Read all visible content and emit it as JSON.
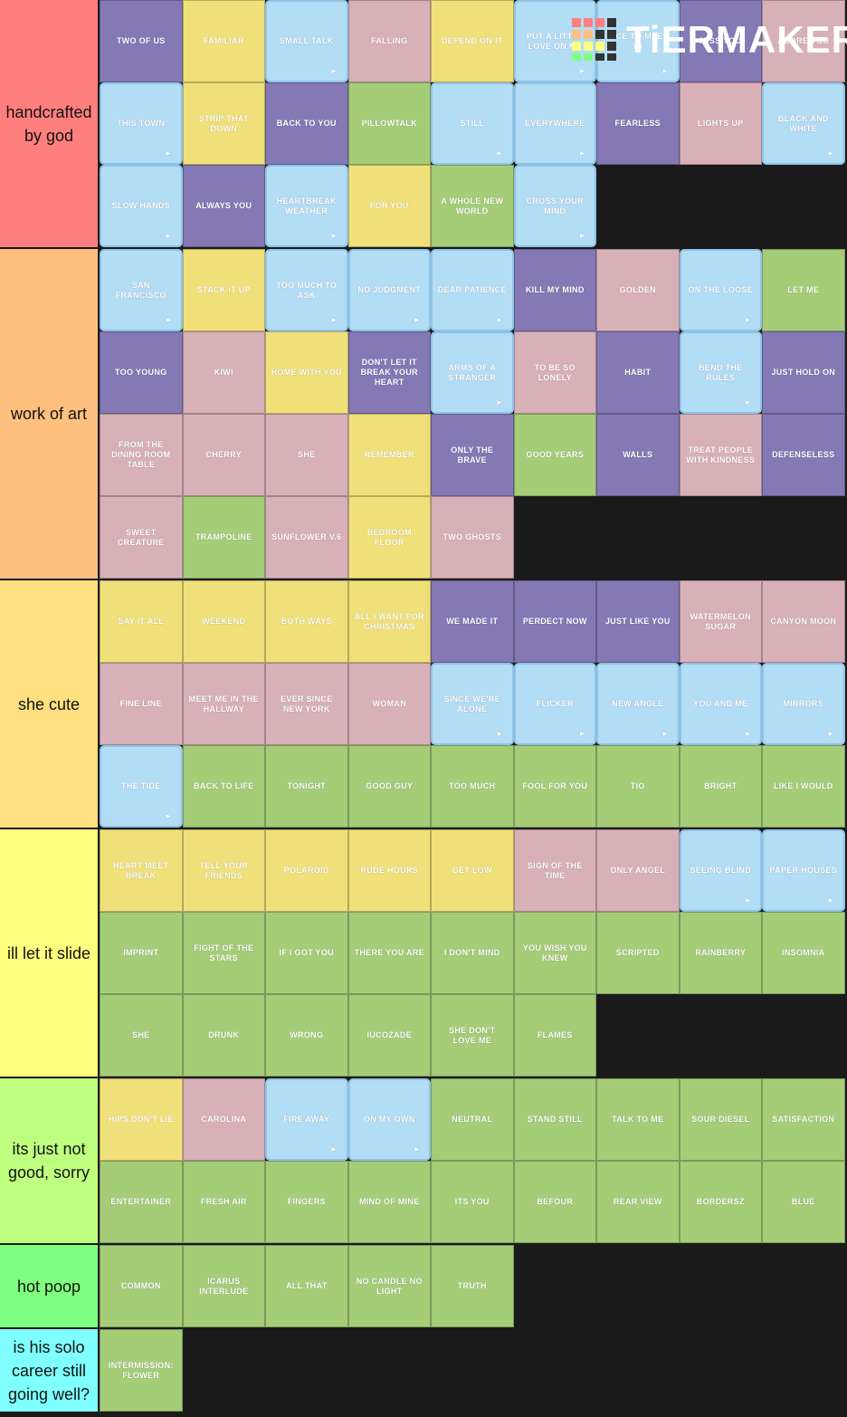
{
  "logo": "TiERMAKER",
  "tiers": [
    {
      "label": "handcrafted by god",
      "color": "#ff7f7f",
      "items": [
        {
          "title": "TWO OF US",
          "color": "#8479b5"
        },
        {
          "title": "FAMILIAR",
          "color": "#f0e07a"
        },
        {
          "title": "SMALL TALK",
          "color": "#b3dcf5"
        },
        {
          "title": "FALLING",
          "color": "#d8b0b8"
        },
        {
          "title": "DEPEND ON IT",
          "color": "#f0e07a"
        },
        {
          "title": "PUT A LITTLE LOVE ON ME",
          "color": "#b3dcf5"
        },
        {
          "title": "NICE TO MEET YA",
          "color": "#b3dcf5"
        },
        {
          "title": "MISS YOU",
          "color": "#8479b5"
        },
        {
          "title": "ADORE YOU",
          "color": "#d8b0b8"
        },
        {
          "title": "THIS TOWN",
          "color": "#b3dcf5"
        },
        {
          "title": "STRIP THAT DOWN",
          "color": "#f0e07a"
        },
        {
          "title": "BACK TO YOU",
          "color": "#8479b5"
        },
        {
          "title": "PILLOWTALK",
          "color": "#a5cd78"
        },
        {
          "title": "STILL",
          "color": "#b3dcf5"
        },
        {
          "title": "EVERYWHERE",
          "color": "#b3dcf5"
        },
        {
          "title": "FEARLESS",
          "color": "#8479b5"
        },
        {
          "title": "LIGHTS UP",
          "color": "#d8b0b8"
        },
        {
          "title": "BLACK AND WHITE",
          "color": "#b3dcf5"
        },
        {
          "title": "SLOW HANDS",
          "color": "#b3dcf5"
        },
        {
          "title": "ALWAYS YOU",
          "color": "#8479b5"
        },
        {
          "title": "HEARTBREAK WEATHER",
          "color": "#b3dcf5"
        },
        {
          "title": "FOR YOU",
          "color": "#f0e07a"
        },
        {
          "title": "A WHOLE NEW WORLD",
          "color": "#a5cd78"
        },
        {
          "title": "CROSS YOUR MIND",
          "color": "#b3dcf5"
        }
      ]
    },
    {
      "label": "work of art",
      "color": "#ffbf7f",
      "items": [
        {
          "title": "SAN FRANCISCO",
          "color": "#b3dcf5"
        },
        {
          "title": "STACK IT UP",
          "color": "#f0e07a"
        },
        {
          "title": "TOO MUCH TO ASK",
          "color": "#b3dcf5"
        },
        {
          "title": "NO JUDGMENT",
          "color": "#b3dcf5"
        },
        {
          "title": "DEAR PATIENCE",
          "color": "#b3dcf5"
        },
        {
          "title": "KILL MY MIND",
          "color": "#8479b5"
        },
        {
          "title": "GOLDEN",
          "color": "#d8b0b8"
        },
        {
          "title": "ON THE LOOSE",
          "color": "#b3dcf5"
        },
        {
          "title": "LET ME",
          "color": "#a5cd78"
        },
        {
          "title": "TOO YOUNG",
          "color": "#8479b5"
        },
        {
          "title": "KIWI",
          "color": "#d8b0b8"
        },
        {
          "title": "HOME WITH YOU",
          "color": "#f0e07a"
        },
        {
          "title": "DON'T LET IT BREAK YOUR HEART",
          "color": "#8479b5"
        },
        {
          "title": "ARMS OF A STRANGER",
          "color": "#b3dcf5"
        },
        {
          "title": "TO BE SO LONELY",
          "color": "#d8b0b8"
        },
        {
          "title": "HABIT",
          "color": "#8479b5"
        },
        {
          "title": "BEND THE RULES",
          "color": "#b3dcf5"
        },
        {
          "title": "JUST HOLD ON",
          "color": "#8479b5"
        },
        {
          "title": "FROM THE DINING ROOM TABLE",
          "color": "#d8b0b8"
        },
        {
          "title": "CHERRY",
          "color": "#d8b0b8"
        },
        {
          "title": "SHE",
          "color": "#d8b0b8"
        },
        {
          "title": "REMEMBER",
          "color": "#f0e07a"
        },
        {
          "title": "ONLY THE BRAVE",
          "color": "#8479b5"
        },
        {
          "title": "GOOD YEARS",
          "color": "#a5cd78"
        },
        {
          "title": "WALLS",
          "color": "#8479b5"
        },
        {
          "title": "TREAT PEOPLE WITH KINDNESS",
          "color": "#d8b0b8"
        },
        {
          "title": "DEFENSELESS",
          "color": "#8479b5"
        },
        {
          "title": "SWEET CREATURE",
          "color": "#d8b0b8"
        },
        {
          "title": "TRAMPOLINE",
          "color": "#a5cd78"
        },
        {
          "title": "SUNFLOWER V.6",
          "color": "#d8b0b8"
        },
        {
          "title": "BEDROOM FLOOR",
          "color": "#f0e07a"
        },
        {
          "title": "TWO GHOSTS",
          "color": "#d8b0b8"
        }
      ]
    },
    {
      "label": "she cute",
      "color": "#ffdf7f",
      "items": [
        {
          "title": "SAY IT ALL",
          "color": "#f0e07a"
        },
        {
          "title": "WEEKEND",
          "color": "#f0e07a"
        },
        {
          "title": "BOTH WAYS",
          "color": "#f0e07a"
        },
        {
          "title": "ALL I WANT FOR CHRISTMAS",
          "color": "#f0e07a"
        },
        {
          "title": "WE MADE IT",
          "color": "#8479b5"
        },
        {
          "title": "PERDECT NOW",
          "color": "#8479b5"
        },
        {
          "title": "JUST LIKE YOU",
          "color": "#8479b5"
        },
        {
          "title": "WATERMELON SUGAR",
          "color": "#d8b0b8"
        },
        {
          "title": "CANYON MOON",
          "color": "#d8b0b8"
        },
        {
          "title": "FINE LINE",
          "color": "#d8b0b8"
        },
        {
          "title": "MEET ME IN THE HALLWAY",
          "color": "#d8b0b8"
        },
        {
          "title": "EVER SINCE NEW YORK",
          "color": "#d8b0b8"
        },
        {
          "title": "WOMAN",
          "color": "#d8b0b8"
        },
        {
          "title": "SINCE WE'RE ALONE",
          "color": "#b3dcf5"
        },
        {
          "title": "FLICKER",
          "color": "#b3dcf5"
        },
        {
          "title": "NEW ANGLE",
          "color": "#b3dcf5"
        },
        {
          "title": "YOU AND ME",
          "color": "#b3dcf5"
        },
        {
          "title": "MIRRORS",
          "color": "#b3dcf5"
        },
        {
          "title": "THE TIDE",
          "color": "#b3dcf5"
        },
        {
          "title": "BACK TO LIFE",
          "color": "#a5cd78"
        },
        {
          "title": "TONIGHT",
          "color": "#a5cd78"
        },
        {
          "title": "GOOD GUY",
          "color": "#a5cd78"
        },
        {
          "title": "TOO MUCH",
          "color": "#a5cd78"
        },
        {
          "title": "FOOL FOR YOU",
          "color": "#a5cd78"
        },
        {
          "title": "TIO",
          "color": "#a5cd78"
        },
        {
          "title": "BRIGHT",
          "color": "#a5cd78"
        },
        {
          "title": "LIKE I WOULD",
          "color": "#a5cd78"
        }
      ]
    },
    {
      "label": "ill let it slide",
      "color": "#ffff7f",
      "items": [
        {
          "title": "HEART MEET BREAK",
          "color": "#f0e07a"
        },
        {
          "title": "TELL YOUR FRIENDS",
          "color": "#f0e07a"
        },
        {
          "title": "POLAROID",
          "color": "#f0e07a"
        },
        {
          "title": "RUDE HOURS",
          "color": "#f0e07a"
        },
        {
          "title": "GET LOW",
          "color": "#f0e07a"
        },
        {
          "title": "SIGN OF THE TIME",
          "color": "#d8b0b8"
        },
        {
          "title": "ONLY ANGEL",
          "color": "#d8b0b8"
        },
        {
          "title": "SEEING BLIND",
          "color": "#b3dcf5"
        },
        {
          "title": "PAPER HOUSES",
          "color": "#b3dcf5"
        },
        {
          "title": "IMPRINT",
          "color": "#a5cd78"
        },
        {
          "title": "FIGHT OF THE STARS",
          "color": "#a5cd78"
        },
        {
          "title": "IF I GOT YOU",
          "color": "#a5cd78"
        },
        {
          "title": "THERE YOU ARE",
          "color": "#a5cd78"
        },
        {
          "title": "I DON'T MIND",
          "color": "#a5cd78"
        },
        {
          "title": "YOU WISH YOU KNEW",
          "color": "#a5cd78"
        },
        {
          "title": "SCRIPTED",
          "color": "#a5cd78"
        },
        {
          "title": "RAINBERRY",
          "color": "#a5cd78"
        },
        {
          "title": "INSOMNIA",
          "color": "#a5cd78"
        },
        {
          "title": "SHE",
          "color": "#a5cd78"
        },
        {
          "title": "DRUNK",
          "color": "#a5cd78"
        },
        {
          "title": "WRONG",
          "color": "#a5cd78"
        },
        {
          "title": "IUCOZADE",
          "color": "#a5cd78"
        },
        {
          "title": "SHE DON'T LOVE ME",
          "color": "#a5cd78"
        },
        {
          "title": "FLAMES",
          "color": "#a5cd78"
        }
      ]
    },
    {
      "label": "its just not good, sorry",
      "color": "#bfff7f",
      "items": [
        {
          "title": "HIPS DON'T LIE",
          "color": "#f0e07a"
        },
        {
          "title": "CAROLINA",
          "color": "#d8b0b8"
        },
        {
          "title": "FIRE AWAY",
          "color": "#b3dcf5"
        },
        {
          "title": "ON MY OWN",
          "color": "#b3dcf5"
        },
        {
          "title": "NEUTRAL",
          "color": "#a5cd78"
        },
        {
          "title": "STAND STILL",
          "color": "#a5cd78"
        },
        {
          "title": "TALK TO ME",
          "color": "#a5cd78"
        },
        {
          "title": "SOUR DIESEL",
          "color": "#a5cd78"
        },
        {
          "title": "SATISFACTION",
          "color": "#a5cd78"
        },
        {
          "title": "ENTERTAINER",
          "color": "#a5cd78"
        },
        {
          "title": "FRESH AIR",
          "color": "#a5cd78"
        },
        {
          "title": "FINGERS",
          "color": "#a5cd78"
        },
        {
          "title": "MIND OF MINE",
          "color": "#a5cd78"
        },
        {
          "title": "ITS YOU",
          "color": "#a5cd78"
        },
        {
          "title": "BEFOUR",
          "color": "#a5cd78"
        },
        {
          "title": "REAR VIEW",
          "color": "#a5cd78"
        },
        {
          "title": "BORDERSZ",
          "color": "#a5cd78"
        },
        {
          "title": "BLUE",
          "color": "#a5cd78"
        }
      ]
    },
    {
      "label": "hot poop",
      "color": "#7fff7f",
      "items": [
        {
          "title": "COMMON",
          "color": "#a5cd78"
        },
        {
          "title": "ICARUS INTERLUDE",
          "color": "#a5cd78"
        },
        {
          "title": "ALL THAT",
          "color": "#a5cd78"
        },
        {
          "title": "NO CANDLE NO LIGHT",
          "color": "#a5cd78"
        },
        {
          "title": "TRUTH",
          "color": "#a5cd78"
        }
      ]
    },
    {
      "label": "is his solo career still going well?",
      "color": "#7fffff",
      "items": [
        {
          "title": "INTERMISSION: FLOWER",
          "color": "#a5cd78"
        }
      ]
    }
  ]
}
